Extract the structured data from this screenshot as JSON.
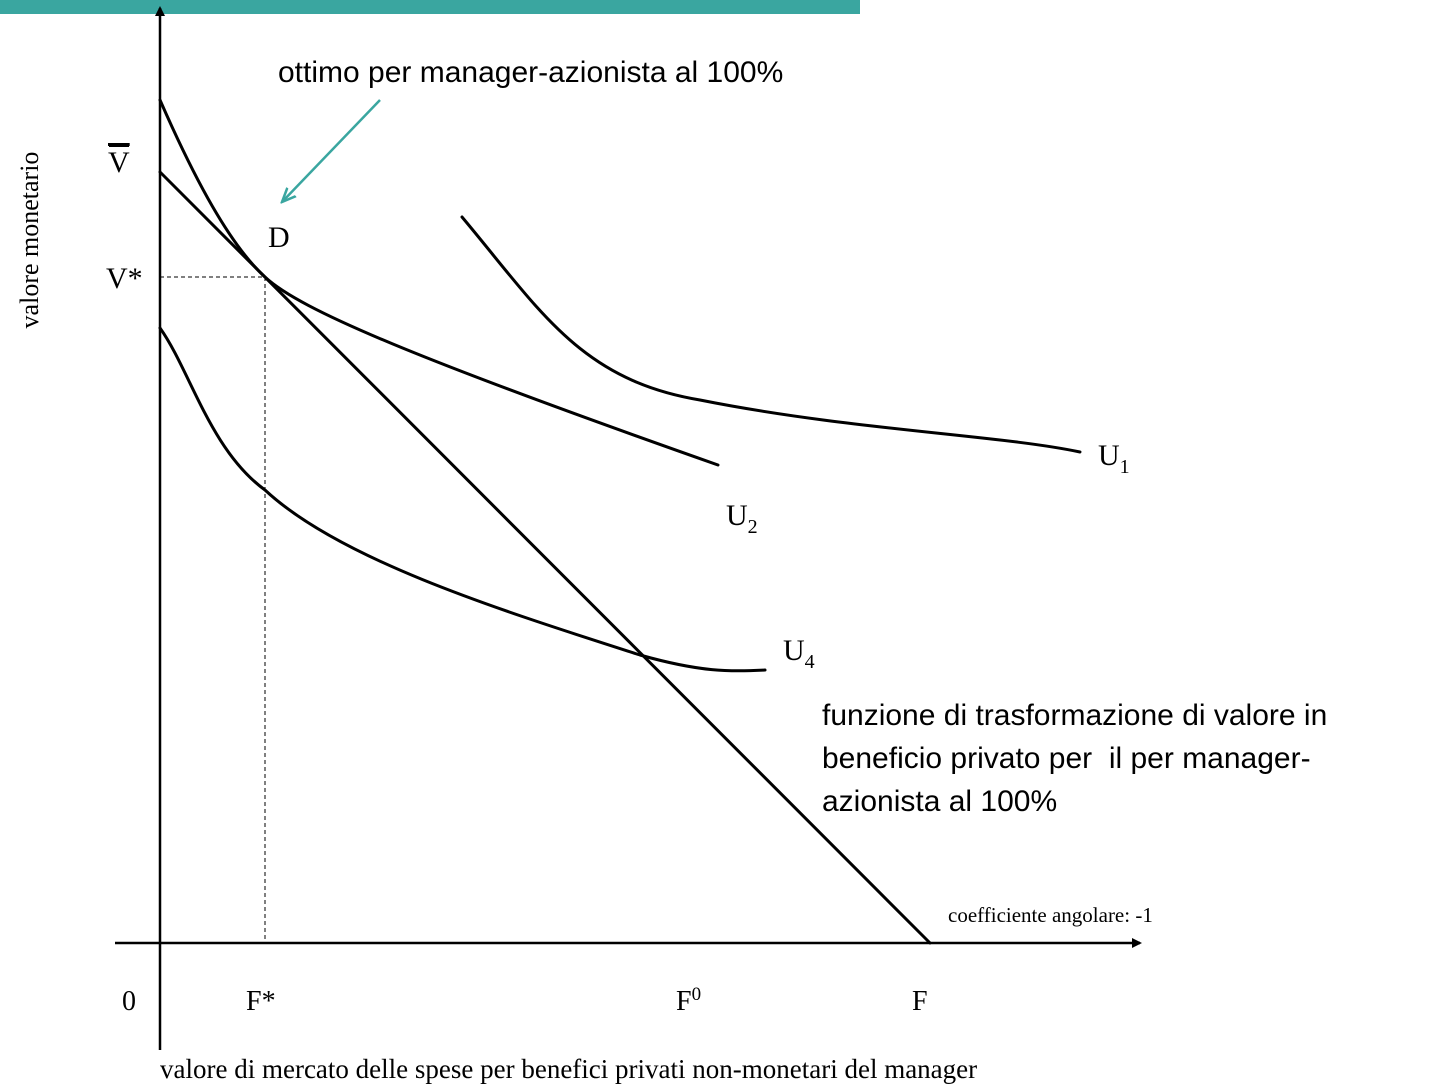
{
  "annotation": "ottimo per manager-azionista al 100%",
  "y_axis_label": "valore monetario",
  "x_axis_label": "valore di mercato delle spese per benefici privati non-monetari del manager",
  "y_labels": {
    "v_bar": "V",
    "v_star": "V*"
  },
  "point_label": "D",
  "curves": [
    {
      "base": "U",
      "sub": "1"
    },
    {
      "base": "U",
      "sub": "2"
    },
    {
      "base": "U",
      "sub": "4"
    }
  ],
  "transformation_note": [
    "funzione di trasformazione di valore in",
    "beneficio privato per  il per manager-",
    "azionista al 100%"
  ],
  "slope_note": "coefficiente angolare: -1",
  "x_labels": {
    "origin": "0",
    "f_star": "F*",
    "f_zero": {
      "base": "F",
      "sup": "0"
    },
    "f": "F"
  }
}
